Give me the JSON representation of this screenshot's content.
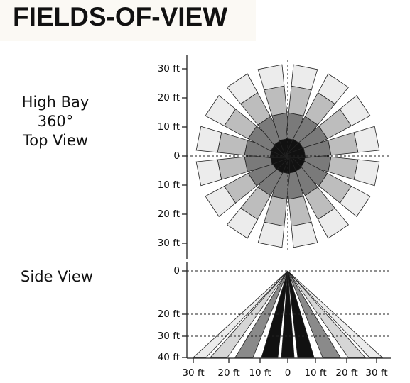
{
  "title": "FIELDS-OF-VIEW",
  "top_view": {
    "label_lines": [
      "High Bay",
      "360°",
      "Top View"
    ],
    "axis_labels": [
      "30 ft",
      "20 ft",
      "10 ft",
      "0",
      "10 ft",
      "20 ft",
      "30 ft"
    ]
  },
  "side_view": {
    "label": "Side View",
    "y_axis_labels": [
      "0",
      "20 ft",
      "30 ft",
      "40 ft"
    ],
    "x_axis_labels": [
      "30 ft",
      "20 ft",
      "10 ft",
      "0",
      "10 ft",
      "20 ft",
      "30 ft"
    ]
  }
}
